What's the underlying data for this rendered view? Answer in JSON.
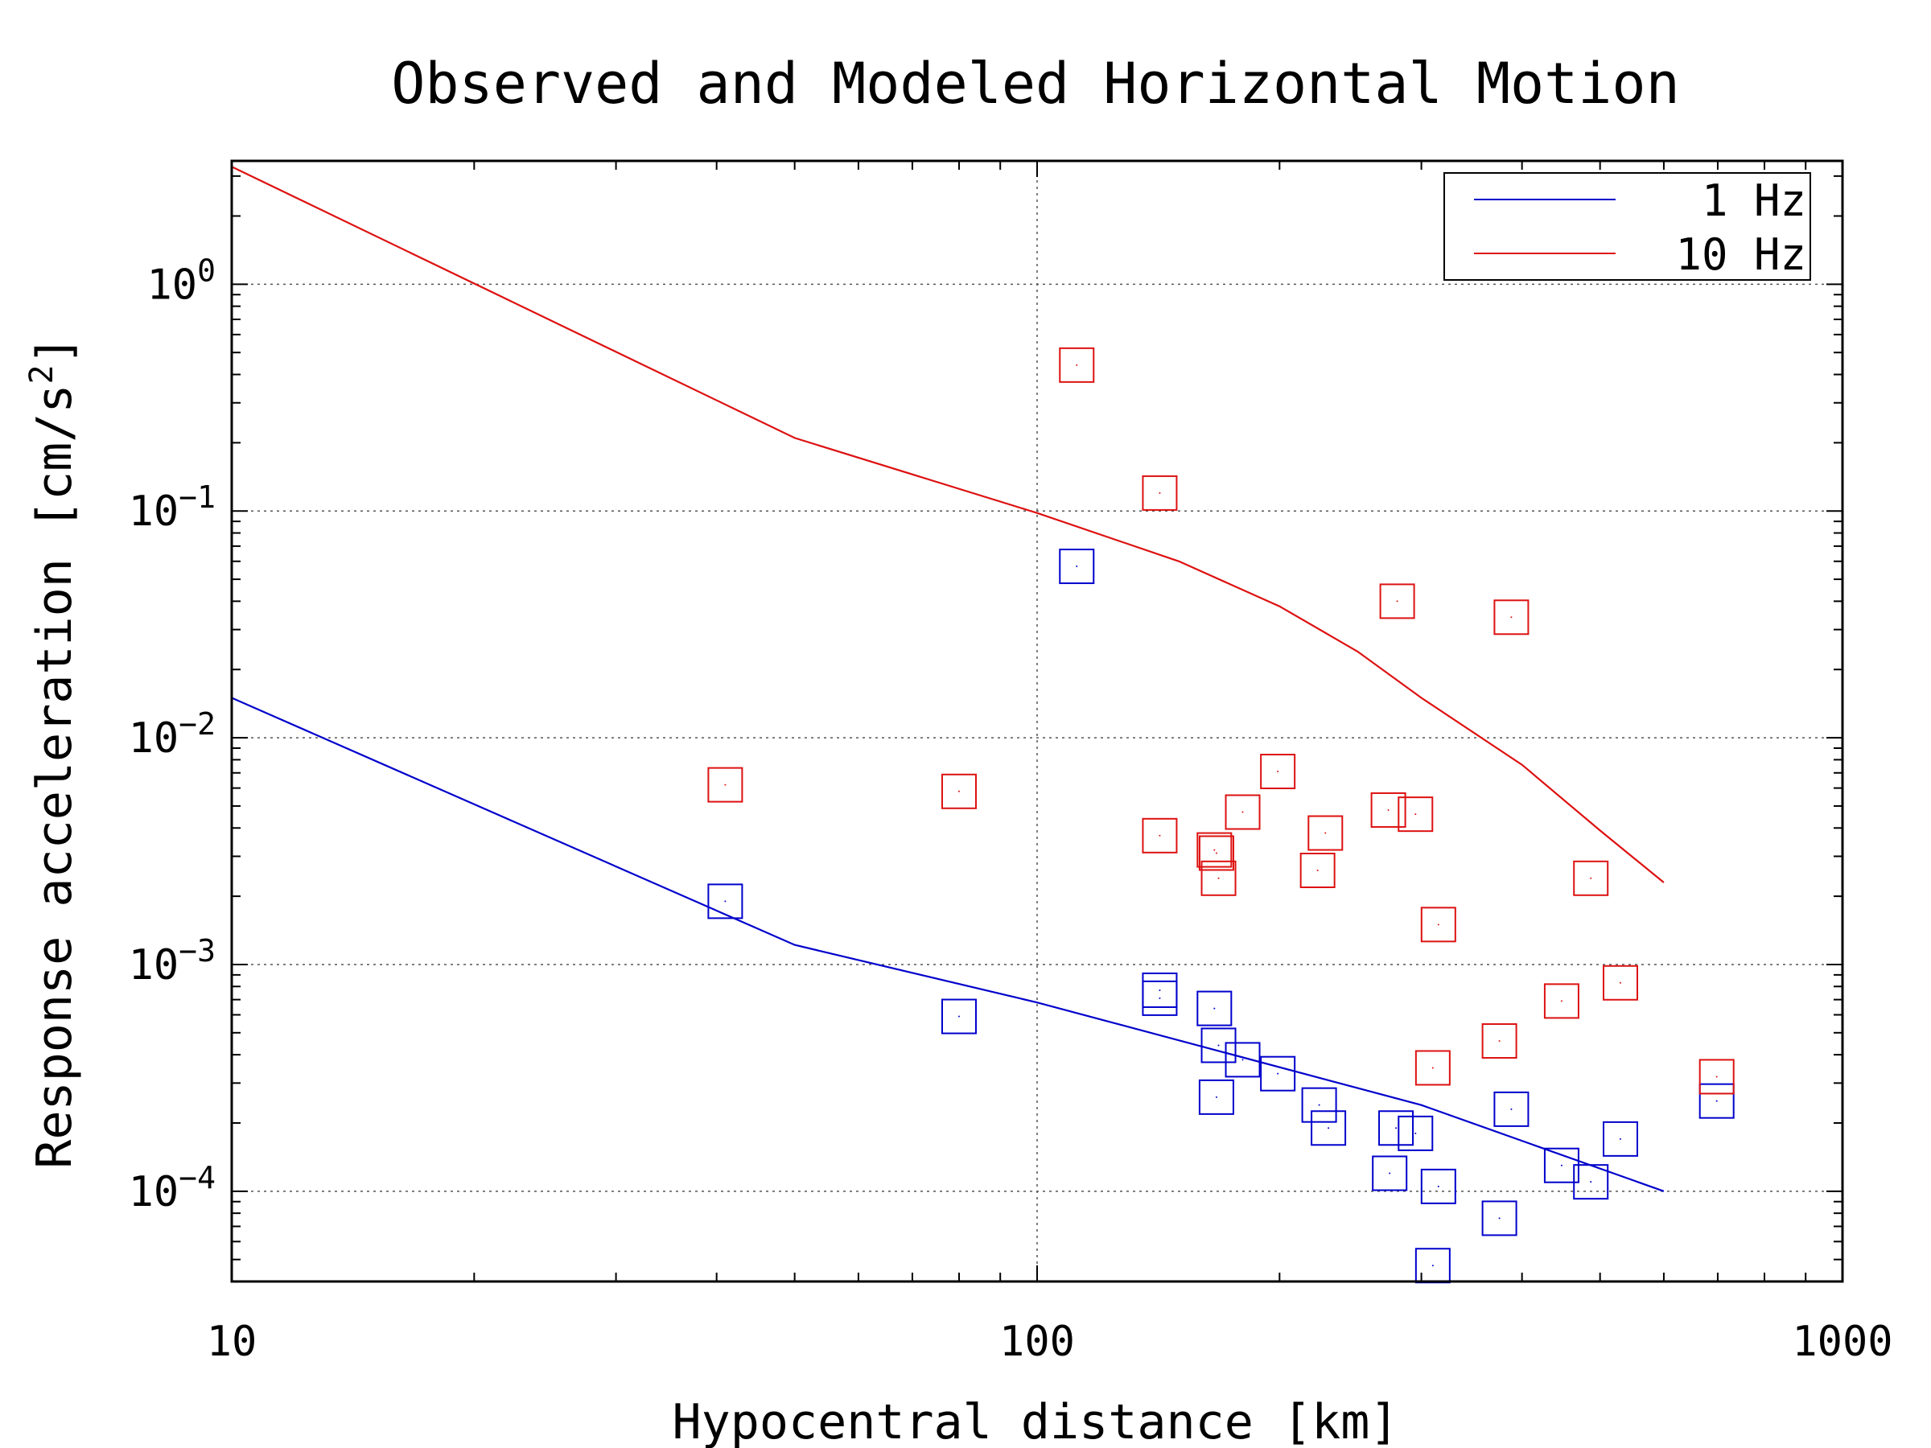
{
  "chart_data": {
    "type": "scatter",
    "title": "Observed and Modeled Horizontal Motion",
    "xlabel": "Hypocentral distance [km]",
    "ylabel": "Response acceleration [cm/s",
    "ylabel_superscript": "2",
    "ylabel_close": "]",
    "xscale": "log",
    "yscale": "log",
    "xlim": [
      10,
      1000
    ],
    "ylim": [
      4e-05,
      3.5
    ],
    "xticks": [
      {
        "value": 10,
        "label": "10"
      },
      {
        "value": 100,
        "label": "100"
      },
      {
        "value": 1000,
        "label": "1000"
      }
    ],
    "yticks": [
      {
        "value": 1,
        "base": "10",
        "exp": "0"
      },
      {
        "value": 0.1,
        "base": "10",
        "exp": "−1"
      },
      {
        "value": 0.01,
        "base": "10",
        "exp": "−2"
      },
      {
        "value": 0.001,
        "base": "10",
        "exp": "−3"
      },
      {
        "value": 0.0001,
        "base": "10",
        "exp": "−4"
      }
    ],
    "grid": true,
    "legend_position": "top-right",
    "series": [
      {
        "name": "1 Hz",
        "color": "#0000cc",
        "line": {
          "x": [
            10,
            50,
            100,
            300,
            600
          ],
          "y": [
            0.015,
            0.00122,
            0.00068,
            0.00024,
            0.0001
          ]
        },
        "observed": {
          "x": [
            41,
            80,
            112,
            142,
            142,
            166,
            167,
            168,
            180,
            199,
            224,
            230,
            274,
            279,
            295,
            310,
            315,
            375,
            388,
            448,
            487,
            530,
            698
          ],
          "y": [
            0.0019,
            0.00059,
            0.057,
            0.00077,
            0.00071,
            0.00064,
            0.00026,
            0.00044,
            0.00038,
            0.00033,
            0.00024,
            0.00019,
            0.00012,
            0.00019,
            0.00018,
            4.7e-05,
            0.000105,
            7.6e-05,
            0.00023,
            0.00013,
            0.00011,
            0.00017,
            0.00025
          ]
        }
      },
      {
        "name": "10 Hz",
        "color": "#dd1111",
        "line": {
          "x": [
            10,
            50,
            100,
            150,
            200,
            250,
            300,
            400,
            500,
            600
          ],
          "y": [
            3.3,
            0.21,
            0.098,
            0.06,
            0.038,
            0.024,
            0.015,
            0.0076,
            0.0039,
            0.0023
          ]
        },
        "observed": {
          "x": [
            41,
            80,
            112,
            142,
            142,
            166,
            167,
            168,
            180,
            199,
            223,
            228,
            273,
            280,
            295,
            310,
            315,
            375,
            388,
            448,
            487,
            530,
            698
          ],
          "y": [
            0.0062,
            0.0058,
            0.44,
            0.12,
            0.0037,
            0.0032,
            0.0031,
            0.0024,
            0.0047,
            0.0071,
            0.0026,
            0.0038,
            0.0048,
            0.04,
            0.0046,
            0.00035,
            0.0015,
            0.00046,
            0.034,
            0.00069,
            0.0024,
            0.00083,
            0.00032
          ]
        }
      }
    ]
  }
}
